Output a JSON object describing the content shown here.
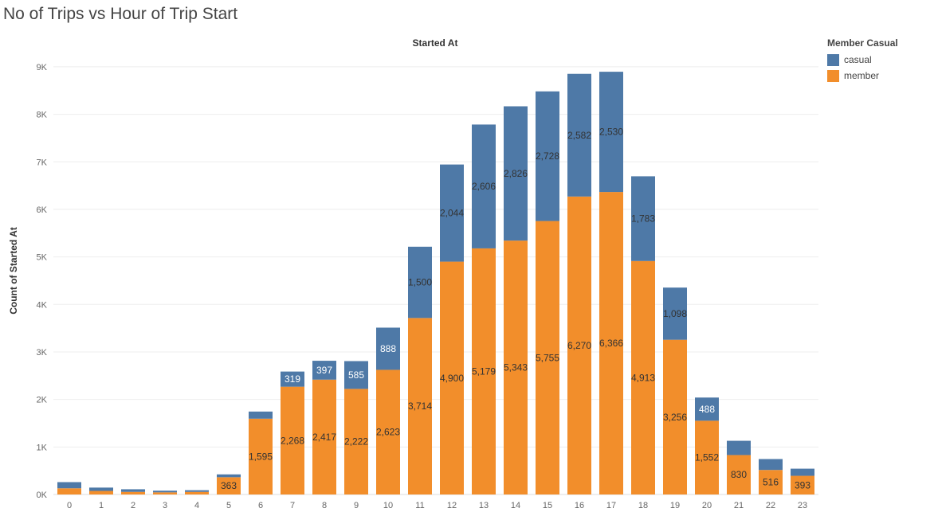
{
  "chart_data": {
    "type": "bar",
    "stacked": true,
    "title": "No of Trips vs Hour of Trip Start",
    "column_header": "Started At",
    "xlabel": "",
    "ylabel": "Count of Started At",
    "categories": [
      "0",
      "1",
      "2",
      "3",
      "4",
      "5",
      "6",
      "7",
      "8",
      "9",
      "10",
      "11",
      "12",
      "13",
      "14",
      "15",
      "16",
      "17",
      "18",
      "19",
      "20",
      "21",
      "22",
      "23"
    ],
    "series": [
      {
        "name": "member",
        "color": "#F28E2B",
        "values": [
          130,
          75,
          55,
          45,
          55,
          363,
          1595,
          2268,
          2417,
          2222,
          2623,
          3714,
          4900,
          5179,
          5343,
          5755,
          6270,
          6366,
          4913,
          3256,
          1552,
          830,
          516,
          393
        ]
      },
      {
        "name": "casual",
        "color": "#4E79A7",
        "values": [
          130,
          70,
          55,
          35,
          35,
          60,
          150,
          319,
          397,
          585,
          888,
          1500,
          2044,
          2606,
          2826,
          2728,
          2582,
          2530,
          1783,
          1098,
          488,
          300,
          230,
          150
        ]
      }
    ],
    "data_labels": {
      "member": [
        "",
        "",
        "",
        "",
        "",
        "363",
        "1,595",
        "2,268",
        "2,417",
        "2,222",
        "2,623",
        "3,714",
        "4,900",
        "5,179",
        "5,343",
        "5,755",
        "6,270",
        "6,366",
        "4,913",
        "3,256",
        "1,552",
        "830",
        "516",
        "393"
      ],
      "casual": [
        "",
        "",
        "",
        "",
        "",
        "",
        "",
        "319",
        "397",
        "585",
        "888",
        "1,500",
        "2,044",
        "2,606",
        "2,826",
        "2,728",
        "2,582",
        "2,530",
        "1,783",
        "1,098",
        "488",
        "",
        "",
        ""
      ]
    },
    "y_ticks": [
      0,
      1000,
      2000,
      3000,
      4000,
      5000,
      6000,
      7000,
      8000,
      9000
    ],
    "y_tick_labels": [
      "0K",
      "1K",
      "2K",
      "3K",
      "4K",
      "5K",
      "6K",
      "7K",
      "8K",
      "9K"
    ],
    "ylim": [
      0,
      9300
    ],
    "grid": true,
    "legend": {
      "title": "Member Casual",
      "position": "top-right",
      "items": [
        {
          "name": "casual",
          "color": "#4E79A7"
        },
        {
          "name": "member",
          "color": "#F28E2B"
        }
      ]
    }
  }
}
